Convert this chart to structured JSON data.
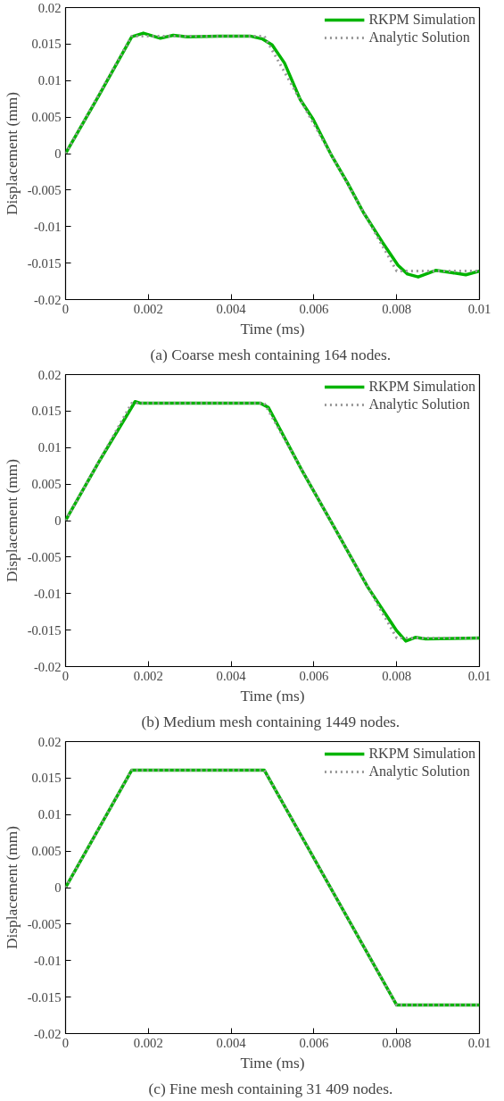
{
  "chart_data": [
    {
      "type": "line",
      "xlabel": "Time (ms)",
      "ylabel": "Displacement (mm)",
      "annotations": [
        "(a)  Coarse mesh containing 164 nodes."
      ],
      "xlim": [
        0,
        0.01
      ],
      "ylim": [
        -0.02,
        0.02
      ],
      "xticks": [
        0,
        0.002,
        0.004,
        0.006,
        0.008,
        0.01
      ],
      "yticks": [
        -0.02,
        -0.015,
        -0.01,
        -0.005,
        0,
        0.005,
        0.01,
        0.015,
        0.02
      ],
      "grid": false,
      "legend": "top right",
      "series": [
        {
          "name": "RKPM Simulation",
          "color": "#00b400",
          "line_style": "solid",
          "x": [
            0,
            0.0008,
            0.0016,
            0.00188,
            0.00229,
            0.0026,
            0.00294,
            0.0037,
            0.00446,
            0.00476,
            0.00499,
            0.00529,
            0.00567,
            0.00598,
            0.00643,
            0.00681,
            0.0072,
            0.00765,
            0.00803,
            0.00826,
            0.00852,
            0.00894,
            0.00932,
            0.00967,
            0.01
          ],
          "values": [
            0,
            0.0079,
            0.016,
            0.0165,
            0.0158,
            0.0162,
            0.016,
            0.0161,
            0.0161,
            0.0157,
            0.0149,
            0.0124,
            0.0074,
            0.0047,
            -0.0003,
            -0.004,
            -0.0081,
            -0.0121,
            -0.0153,
            -0.0165,
            -0.0169,
            -0.016,
            -0.0163,
            -0.0166,
            -0.0161
          ]
        },
        {
          "name": "Analytic Solution",
          "color": "#999999",
          "line_style": "dotted",
          "x": [
            0,
            0.0016,
            0.0048,
            0.008,
            0.01
          ],
          "values": [
            0,
            0.0161,
            0.0161,
            -0.0161,
            -0.0161
          ]
        }
      ]
    },
    {
      "type": "line",
      "xlabel": "Time (ms)",
      "ylabel": "Displacement (mm)",
      "annotations": [
        "(b)  Medium mesh containing 1449 nodes."
      ],
      "xlim": [
        0,
        0.01
      ],
      "ylim": [
        -0.02,
        0.02
      ],
      "xticks": [
        0,
        0.002,
        0.004,
        0.006,
        0.008,
        0.01
      ],
      "yticks": [
        -0.02,
        -0.015,
        -0.01,
        -0.005,
        0,
        0.005,
        0.01,
        0.015,
        0.02
      ],
      "grid": false,
      "legend": "top right",
      "series": [
        {
          "name": "RKPM Simulation",
          "color": "#00b400",
          "line_style": "solid",
          "x": [
            0,
            0.0008,
            0.00168,
            0.0018,
            0.0047,
            0.0049,
            0.0057,
            0.0065,
            0.0073,
            0.008,
            0.00822,
            0.00845,
            0.0087,
            0.01
          ],
          "values": [
            0,
            0.008,
            0.0163,
            0.0161,
            0.0161,
            0.0155,
            0.007,
            -0.001,
            -0.0091,
            -0.0151,
            -0.0165,
            -0.016,
            -0.0162,
            -0.0161
          ]
        },
        {
          "name": "Analytic Solution",
          "color": "#999999",
          "line_style": "dotted",
          "x": [
            0,
            0.0016,
            0.0048,
            0.008,
            0.01
          ],
          "values": [
            0,
            0.0161,
            0.0161,
            -0.0161,
            -0.0161
          ]
        }
      ]
    },
    {
      "type": "line",
      "xlabel": "Time (ms)",
      "ylabel": "Displacement (mm)",
      "annotations": [
        "(c)  Fine mesh containing 31 409 nodes."
      ],
      "xlim": [
        0,
        0.01
      ],
      "ylim": [
        -0.02,
        0.02
      ],
      "xticks": [
        0,
        0.002,
        0.004,
        0.006,
        0.008,
        0.01
      ],
      "yticks": [
        -0.02,
        -0.015,
        -0.01,
        -0.005,
        0,
        0.005,
        0.01,
        0.015,
        0.02
      ],
      "grid": false,
      "legend": "top right",
      "series": [
        {
          "name": "RKPM Simulation",
          "color": "#00b400",
          "line_style": "solid",
          "x": [
            0,
            0.0016,
            0.0048,
            0.008,
            0.01
          ],
          "values": [
            0,
            0.0161,
            0.0161,
            -0.0161,
            -0.0161
          ]
        },
        {
          "name": "Analytic Solution",
          "color": "#999999",
          "line_style": "dotted",
          "x": [
            0,
            0.0016,
            0.0048,
            0.008,
            0.01
          ],
          "values": [
            0,
            0.0161,
            0.0161,
            -0.0161,
            -0.0161
          ]
        }
      ]
    }
  ]
}
